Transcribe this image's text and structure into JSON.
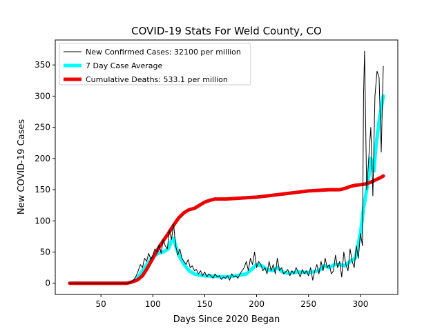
{
  "chart_data": {
    "type": "line",
    "title": "COVID-19 Stats For Weld County, CO",
    "xlabel": "Days Since 2020 Began",
    "ylabel": "New COVID-19 Cases",
    "xlim": [
      6,
      336
    ],
    "ylim": [
      -18,
      390
    ],
    "xticks": [
      50,
      100,
      150,
      200,
      250,
      300
    ],
    "yticks": [
      0,
      50,
      100,
      150,
      200,
      250,
      300,
      350
    ],
    "legend_position": "top-left",
    "grid": false,
    "series": [
      {
        "name": "New Confirmed Cases: 32100 per million",
        "color": "#000000",
        "x": [
          20,
          30,
          40,
          50,
          60,
          70,
          75,
          78,
          80,
          82,
          84,
          86,
          88,
          90,
          92,
          94,
          96,
          98,
          100,
          102,
          104,
          106,
          108,
          110,
          112,
          114,
          116,
          118,
          120,
          122,
          124,
          126,
          128,
          130,
          132,
          134,
          136,
          138,
          140,
          142,
          144,
          146,
          148,
          150,
          152,
          154,
          156,
          158,
          160,
          162,
          164,
          166,
          168,
          170,
          172,
          174,
          176,
          178,
          180,
          182,
          184,
          186,
          188,
          190,
          192,
          194,
          196,
          198,
          200,
          202,
          204,
          206,
          208,
          210,
          212,
          214,
          216,
          218,
          220,
          222,
          224,
          226,
          228,
          230,
          232,
          234,
          236,
          238,
          240,
          242,
          244,
          246,
          248,
          250,
          252,
          254,
          256,
          258,
          260,
          262,
          264,
          266,
          268,
          270,
          272,
          274,
          276,
          278,
          280,
          282,
          284,
          286,
          288,
          290,
          292,
          294,
          296,
          298,
          300,
          302,
          303,
          304,
          306,
          308,
          310,
          312,
          314,
          316,
          318,
          320,
          322
        ],
        "values": [
          0,
          0,
          0,
          0,
          0,
          0,
          0,
          1,
          3,
          6,
          12,
          20,
          30,
          25,
          40,
          35,
          48,
          38,
          45,
          55,
          50,
          62,
          48,
          70,
          60,
          55,
          85,
          70,
          95,
          60,
          45,
          55,
          40,
          35,
          30,
          38,
          25,
          28,
          20,
          22,
          15,
          20,
          12,
          18,
          10,
          15,
          12,
          8,
          15,
          10,
          12,
          6,
          10,
          8,
          12,
          5,
          15,
          10,
          12,
          8,
          15,
          20,
          25,
          35,
          20,
          40,
          30,
          50,
          25,
          35,
          30,
          20,
          25,
          15,
          35,
          20,
          30,
          15,
          40,
          20,
          25,
          15,
          18,
          22,
          12,
          20,
          15,
          25,
          18,
          10,
          22,
          15,
          20,
          12,
          25,
          5,
          20,
          30,
          15,
          35,
          20,
          40,
          25,
          30,
          15,
          20,
          45,
          25,
          35,
          10,
          50,
          30,
          20,
          55,
          35,
          25,
          60,
          40,
          80,
          60,
          300,
          372,
          150,
          200,
          250,
          140,
          300,
          340,
          330,
          210,
          348
        ]
      },
      {
        "name": "7 Day Case Average",
        "color": "#00ffff",
        "x": [
          20,
          40,
          60,
          75,
          80,
          85,
          90,
          95,
          100,
          105,
          110,
          115,
          118,
          120,
          122,
          125,
          130,
          135,
          140,
          145,
          150,
          160,
          170,
          180,
          190,
          195,
          200,
          205,
          210,
          215,
          220,
          225,
          230,
          240,
          250,
          260,
          265,
          270,
          275,
          280,
          285,
          290,
          295,
          300,
          303,
          306,
          308,
          310,
          313,
          315,
          318,
          320,
          322
        ],
        "values": [
          0,
          0,
          0,
          0,
          2,
          8,
          20,
          32,
          42,
          48,
          50,
          55,
          68,
          72,
          60,
          45,
          30,
          20,
          15,
          13,
          12,
          11,
          10,
          12,
          15,
          22,
          30,
          28,
          22,
          20,
          25,
          18,
          16,
          18,
          17,
          20,
          28,
          25,
          30,
          30,
          28,
          35,
          40,
          80,
          120,
          150,
          170,
          200,
          180,
          220,
          260,
          280,
          300
        ]
      },
      {
        "name": "Cumulative Deaths: 533.1 per million",
        "color": "#ee0000",
        "x": [
          20,
          40,
          60,
          75,
          80,
          85,
          90,
          95,
          100,
          105,
          110,
          115,
          120,
          125,
          130,
          135,
          140,
          145,
          150,
          155,
          160,
          170,
          180,
          190,
          200,
          210,
          220,
          230,
          240,
          250,
          260,
          270,
          280,
          285,
          290,
          295,
          300,
          305,
          310,
          315,
          320,
          322
        ],
        "values": [
          0,
          0,
          0,
          0,
          2,
          5,
          12,
          25,
          40,
          55,
          68,
          80,
          93,
          105,
          113,
          118,
          120,
          125,
          130,
          133,
          135,
          135,
          136,
          137,
          138,
          140,
          142,
          144,
          146,
          148,
          149,
          150,
          150,
          152,
          155,
          157,
          158,
          159,
          162,
          166,
          170,
          172
        ]
      }
    ]
  }
}
